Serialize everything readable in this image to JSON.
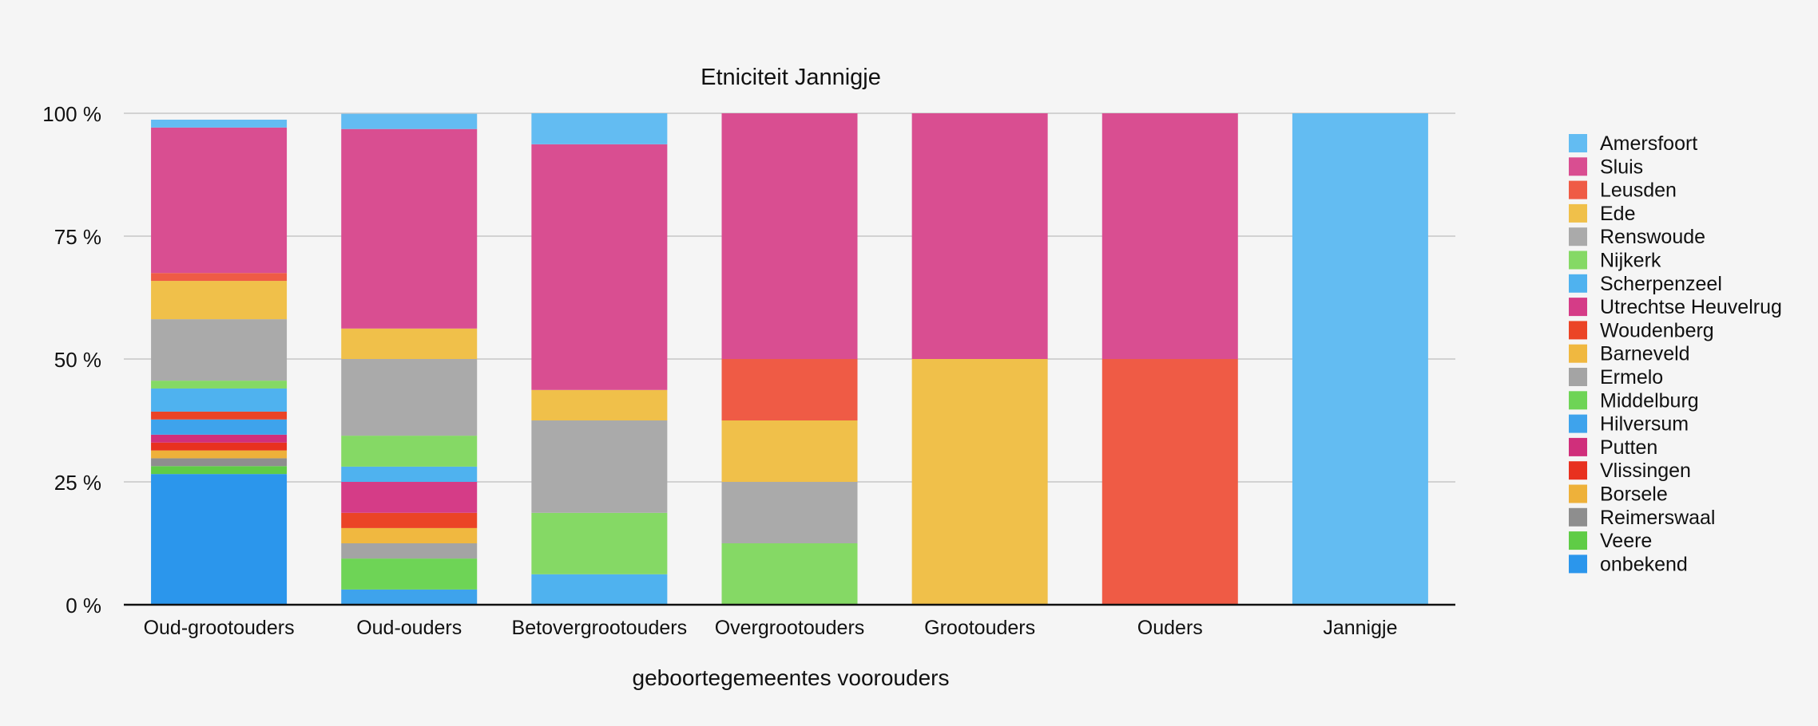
{
  "chart_data": {
    "type": "bar",
    "stacked": true,
    "percent": true,
    "title": "Etniciteit Jannigje",
    "xlabel": "geboortegemeentes voorouders",
    "ylabel": "",
    "ylim": [
      0,
      100
    ],
    "y_ticks": [
      {
        "value": 0,
        "label": "0 %"
      },
      {
        "value": 25,
        "label": "25 %"
      },
      {
        "value": 50,
        "label": "50 %"
      },
      {
        "value": 75,
        "label": "75 %"
      },
      {
        "value": 100,
        "label": "100 %"
      }
    ],
    "grid": true,
    "legend_position": "right",
    "categories": [
      "Oud-grootouders",
      "Oud-ouders",
      "Betovergrootouders",
      "Overgrootouders",
      "Grootouders",
      "Ouders",
      "Jannigje"
    ],
    "series": [
      {
        "name": "onbekend",
        "color": "#2b96ec",
        "values": [
          26.6,
          0,
          0,
          0,
          0,
          0,
          0
        ]
      },
      {
        "name": "Veere",
        "color": "#5fcc46",
        "values": [
          1.6,
          0,
          0,
          0,
          0,
          0,
          0
        ]
      },
      {
        "name": "Reimerswaal",
        "color": "#8e8e8e",
        "values": [
          1.6,
          0,
          0,
          0,
          0,
          0,
          0
        ]
      },
      {
        "name": "Borsele",
        "color": "#eeb13a",
        "values": [
          1.6,
          0,
          0,
          0,
          0,
          0,
          0
        ]
      },
      {
        "name": "Vlissingen",
        "color": "#e8311f",
        "values": [
          1.6,
          0,
          0,
          0,
          0,
          0,
          0
        ]
      },
      {
        "name": "Putten",
        "color": "#d02f7b",
        "values": [
          1.6,
          0,
          0,
          0,
          0,
          0,
          0
        ]
      },
      {
        "name": "Hilversum",
        "color": "#3ea3ec",
        "values": [
          3.1,
          3.1,
          0,
          0,
          0,
          0,
          0
        ]
      },
      {
        "name": "Middelburg",
        "color": "#6ed456",
        "values": [
          0,
          6.3,
          0,
          0,
          0,
          0,
          0
        ]
      },
      {
        "name": "Ermelo",
        "color": "#a4a4a4",
        "values": [
          0,
          3.1,
          0,
          0,
          0,
          0,
          0
        ]
      },
      {
        "name": "Barneveld",
        "color": "#f0b840",
        "values": [
          0,
          3.1,
          0,
          0,
          0,
          0,
          0
        ]
      },
      {
        "name": "Woudenberg",
        "color": "#eb4426",
        "values": [
          1.6,
          3.1,
          0,
          0,
          0,
          0,
          0
        ]
      },
      {
        "name": "Utrechtse Heuvelrug",
        "color": "#d53c87",
        "values": [
          0,
          6.3,
          0,
          0,
          0,
          0,
          0
        ]
      },
      {
        "name": "Scherpenzeel",
        "color": "#4fb2ef",
        "values": [
          4.7,
          3.1,
          6.2,
          0,
          0,
          0,
          0
        ]
      },
      {
        "name": "Nijkerk",
        "color": "#85d965",
        "values": [
          1.6,
          6.3,
          12.5,
          12.5,
          0,
          0,
          0
        ]
      },
      {
        "name": "Renswoude",
        "color": "#aaaaaa",
        "values": [
          12.5,
          15.6,
          18.8,
          12.5,
          0,
          0,
          0
        ]
      },
      {
        "name": "Ede",
        "color": "#f0c04a",
        "values": [
          7.8,
          6.2,
          6.2,
          12.5,
          50,
          0,
          0
        ]
      },
      {
        "name": "Leusden",
        "color": "#ef5b45",
        "values": [
          1.6,
          0,
          0,
          12.5,
          0,
          50,
          0
        ]
      },
      {
        "name": "Sluis",
        "color": "#d94e91",
        "values": [
          29.6,
          40.6,
          50.0,
          50.0,
          50,
          50,
          0
        ]
      },
      {
        "name": "Amersfoort",
        "color": "#63bcf2",
        "values": [
          1.6,
          3.1,
          6.3,
          0,
          0,
          0,
          100
        ]
      }
    ],
    "legend_order": [
      "Amersfoort",
      "Sluis",
      "Leusden",
      "Ede",
      "Renswoude",
      "Nijkerk",
      "Scherpenzeel",
      "Utrechtse Heuvelrug",
      "Woudenberg",
      "Barneveld",
      "Ermelo",
      "Middelburg",
      "Hilversum",
      "Putten",
      "Vlissingen",
      "Borsele",
      "Reimerswaal",
      "Veere",
      "onbekend"
    ]
  }
}
